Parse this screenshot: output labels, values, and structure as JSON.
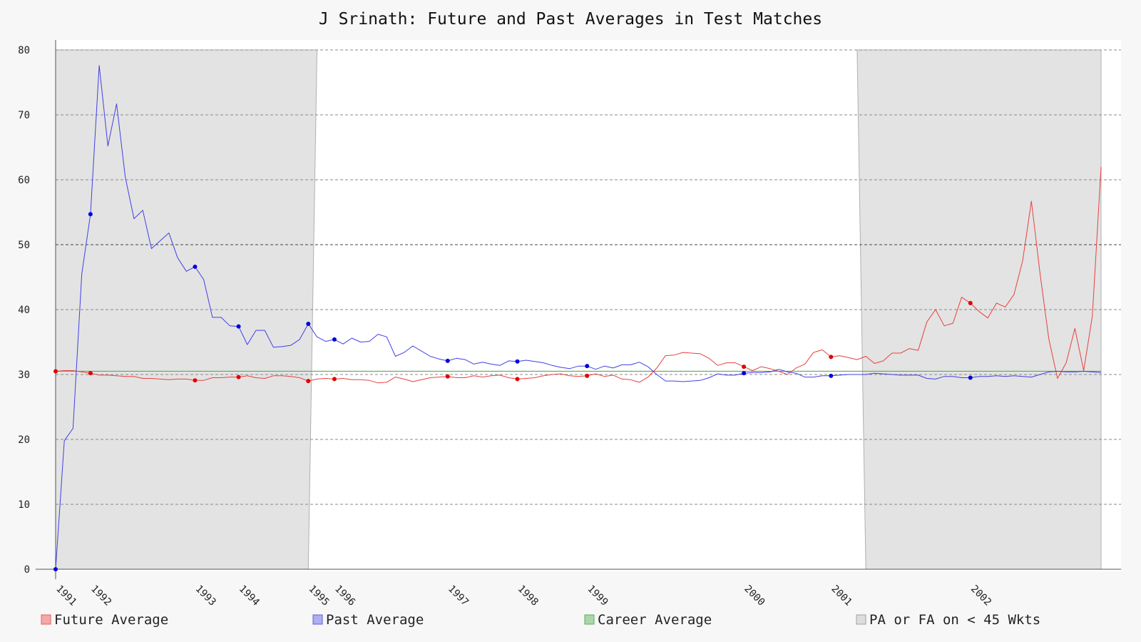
{
  "chart_data": {
    "type": "line",
    "title": "J Srinath: Future and Past Averages in Test Matches",
    "xlabel": "",
    "ylabel": "",
    "ylim": [
      0,
      80
    ],
    "yticks": [
      0,
      10,
      20,
      30,
      40,
      50,
      60,
      70,
      80
    ],
    "grid": "horizontal dashed",
    "legend_position": "bottom",
    "career_average": 30.5,
    "year_ticks": [
      {
        "label": "1991",
        "match": 1
      },
      {
        "label": "1992",
        "match": 5
      },
      {
        "label": "1993",
        "match": 17
      },
      {
        "label": "1994",
        "match": 22
      },
      {
        "label": "1995",
        "match": 30
      },
      {
        "label": "1996",
        "match": 33
      },
      {
        "label": "1997",
        "match": 46
      },
      {
        "label": "1998",
        "match": 54
      },
      {
        "label": "1999",
        "match": 62
      },
      {
        "label": "2000",
        "match": 80
      },
      {
        "label": "2001",
        "match": 90
      },
      {
        "label": "2002",
        "match": 106
      }
    ],
    "shaded_regions": [
      {
        "start_match": 1,
        "end_match": 30,
        "end_match_top": 31
      },
      {
        "start_match": 94,
        "end_match": 121,
        "start_match_top": 93
      }
    ],
    "series": [
      {
        "name": "Future Average",
        "color": "#e84040",
        "values": [
          30.5,
          30.6,
          30.6,
          30.4,
          30.2,
          29.9,
          29.9,
          29.8,
          29.7,
          29.7,
          29.4,
          29.4,
          29.3,
          29.2,
          29.3,
          29.3,
          29.1,
          29.1,
          29.5,
          29.5,
          29.6,
          29.6,
          29.8,
          29.5,
          29.4,
          29.8,
          29.8,
          29.7,
          29.5,
          29.0,
          29.3,
          29.4,
          29.3,
          29.4,
          29.2,
          29.2,
          29.1,
          28.7,
          28.8,
          29.6,
          29.3,
          28.9,
          29.2,
          29.5,
          29.6,
          29.7,
          29.5,
          29.5,
          29.8,
          29.6,
          29.8,
          29.9,
          29.5,
          29.3,
          29.4,
          29.5,
          29.8,
          30.0,
          30.1,
          29.8,
          29.7,
          29.8,
          30.1,
          29.7,
          29.9,
          29.3,
          29.2,
          28.8,
          29.6,
          31.0,
          32.9,
          33.0,
          33.4,
          33.3,
          33.2,
          32.5,
          31.4,
          31.8,
          31.8,
          31.2,
          30.6,
          31.2,
          30.9,
          30.5,
          30.0,
          31.0,
          31.6,
          33.4,
          33.8,
          32.7,
          32.9,
          32.6,
          32.3,
          32.8,
          31.7,
          32.1,
          33.3,
          33.3,
          34.0,
          33.7,
          38.1,
          40.0,
          37.5,
          37.9,
          41.9,
          41.0,
          39.7,
          38.7,
          41.0,
          40.4,
          42.3,
          47.5,
          56.7,
          45.5,
          35.5,
          29.4,
          31.8,
          37.1,
          30.6,
          39.0,
          62.0
        ]
      },
      {
        "name": "Past Average",
        "color": "#4040e6",
        "values": [
          0.0,
          19.8,
          21.7,
          45.5,
          54.7,
          77.6,
          65.2,
          71.7,
          60.4,
          54.0,
          55.3,
          49.4,
          50.6,
          51.8,
          48.0,
          45.9,
          46.6,
          44.6,
          38.8,
          38.8,
          37.5,
          37.4,
          34.6,
          36.8,
          36.8,
          34.2,
          34.3,
          34.5,
          35.4,
          37.8,
          35.8,
          35.1,
          35.4,
          34.7,
          35.6,
          35.0,
          35.1,
          36.2,
          35.8,
          32.8,
          33.4,
          34.4,
          33.6,
          32.8,
          32.4,
          32.1,
          32.5,
          32.3,
          31.6,
          31.9,
          31.6,
          31.4,
          32.1,
          32.0,
          32.2,
          32.0,
          31.8,
          31.4,
          31.1,
          30.9,
          31.3,
          31.3,
          30.8,
          31.3,
          31.0,
          31.5,
          31.5,
          31.9,
          31.2,
          30.0,
          29.0,
          29.0,
          28.9,
          29.0,
          29.1,
          29.5,
          30.1,
          29.9,
          29.9,
          30.2,
          30.3,
          30.3,
          30.4,
          30.8,
          30.4,
          30.2,
          29.6,
          29.6,
          29.8,
          29.8,
          29.9,
          30.0,
          30.0,
          30.0,
          30.2,
          30.1,
          30.0,
          29.9,
          29.9,
          29.9,
          29.4,
          29.3,
          29.7,
          29.7,
          29.5,
          29.5,
          29.7,
          29.7,
          29.8,
          29.7,
          29.8,
          29.7,
          29.6,
          30.0,
          30.4,
          30.5,
          30.4,
          30.4,
          30.5,
          30.4,
          30.3
        ]
      }
    ],
    "marker_matches": [
      1,
      5,
      17,
      22,
      30,
      33,
      46,
      54,
      62,
      80,
      90,
      106
    ],
    "legend": [
      {
        "label": "Future Average",
        "fill": "#f4a8a8",
        "stroke": "#e06060"
      },
      {
        "label": "Past Average",
        "fill": "#aeaef2",
        "stroke": "#6060d8"
      },
      {
        "label": "Career Average",
        "fill": "#a8d8a8",
        "stroke": "#60a860"
      },
      {
        "label": "PA or FA on < 45 Wkts",
        "fill": "#dddddd",
        "stroke": "#a0a0a0"
      }
    ]
  }
}
